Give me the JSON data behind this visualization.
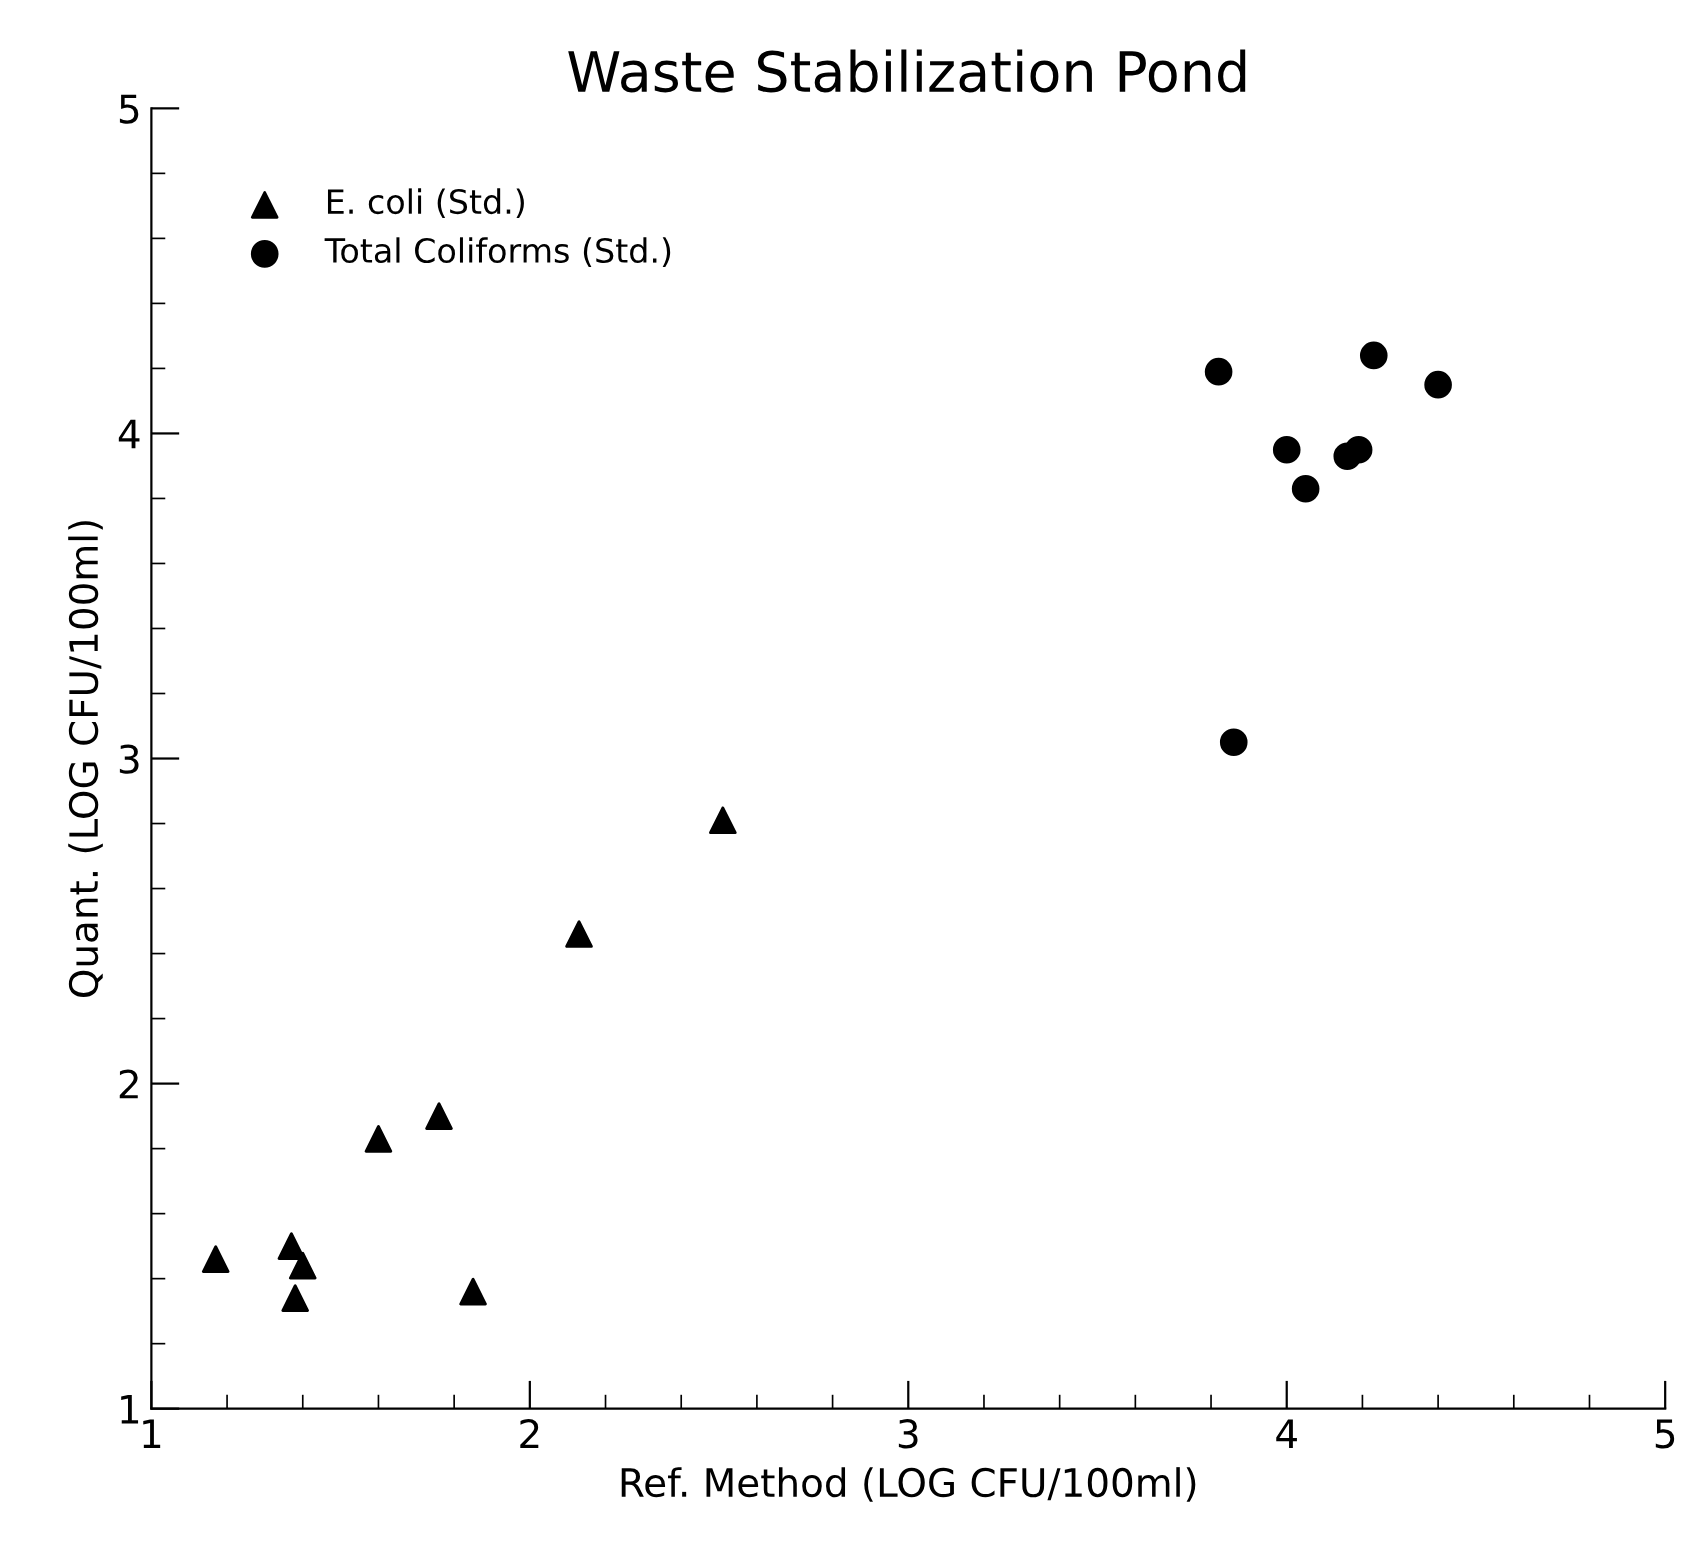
{
  "chart_data": {
    "type": "scatter",
    "title": "Waste Stabilization Pond",
    "xlabel": "Ref. Method (LOG CFU/100ml)",
    "ylabel": "Quant. (LOG CFU/100ml)",
    "series": [
      {
        "name": "E. coli (Std.)",
        "color": "#000000",
        "marker": "triangle",
        "x": [
          1.17,
          1.37,
          1.4,
          1.38,
          1.6,
          1.76,
          1.85,
          2.13,
          2.51
        ],
        "values": [
          1.46,
          1.5,
          1.44,
          1.34,
          1.83,
          1.9,
          1.36,
          2.46,
          2.81
        ]
      },
      {
        "name": "Total Coliforms (Std.)",
        "color": "#000000",
        "marker": "circle",
        "x": [
          3.82,
          4.0,
          4.05,
          4.16,
          4.19,
          4.23,
          4.4,
          3.86
        ],
        "values": [
          4.19,
          3.95,
          3.83,
          3.93,
          3.95,
          4.24,
          4.15,
          3.05
        ]
      }
    ],
    "xlim": [
      1,
      5
    ],
    "ylim": [
      1,
      5
    ],
    "xticks": [
      1,
      2,
      3,
      4,
      5
    ],
    "yticks": [
      1,
      2,
      3,
      4,
      5
    ],
    "grid": false,
    "legend": "top left"
  }
}
